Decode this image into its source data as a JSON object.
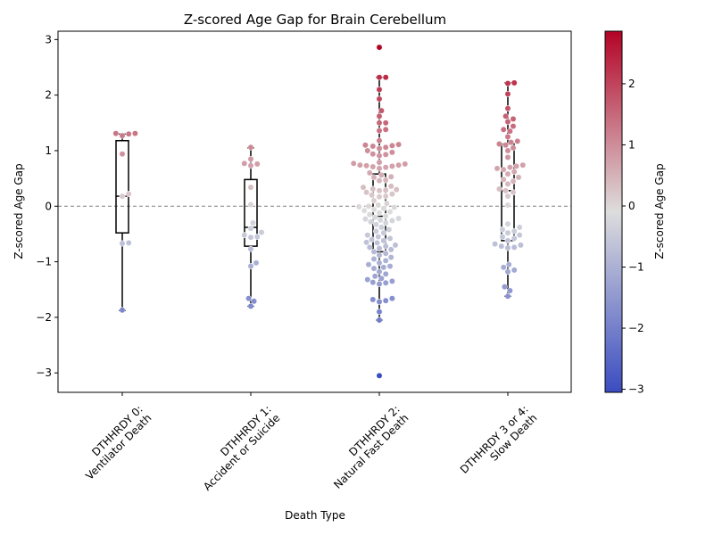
{
  "chart_data": {
    "type": "scatter",
    "subtype": "box-swarm",
    "title": "Z-scored Age Gap for Brain Cerebellum",
    "xlabel": "Death Type",
    "ylabel": "Z-scored Age Gap",
    "ylim": [
      -3.35,
      3.15
    ],
    "yticks": [
      -3,
      -2,
      -1,
      0,
      1,
      2,
      3
    ],
    "ytick_labels": [
      "−3",
      "−2",
      "−1",
      "0",
      "1",
      "2",
      "3"
    ],
    "reference_line": 0,
    "reference_line_color": "#808080",
    "grid": false,
    "categories": [
      [
        "DTHHRDY 0:",
        "Ventilator Death"
      ],
      [
        "DTHHRDY 1:",
        "Accident or Suicide"
      ],
      [
        "DTHHRDY 2:",
        "Natural Fast Death"
      ],
      [
        "DTHHRDY 3 or 4:",
        "Slow Death"
      ]
    ],
    "boxes": [
      {
        "q1": -0.48,
        "median": 0.18,
        "q3": 1.18,
        "whisker_low": -1.88,
        "whisker_high": 1.3
      },
      {
        "q1": -0.72,
        "median": -0.38,
        "q3": 0.48,
        "whisker_low": -1.8,
        "whisker_high": 1.05
      },
      {
        "q1": -0.82,
        "median": -0.18,
        "q3": 0.58,
        "whisker_low": -2.05,
        "whisker_high": 2.32
      },
      {
        "q1": -0.62,
        "median": 0.28,
        "q3": 1.12,
        "whisker_low": -1.62,
        "whisker_high": 2.22
      }
    ],
    "series": [
      {
        "values": [
          1.31,
          1.3,
          1.31,
          1.27,
          0.94,
          0.22,
          0.18,
          -0.66,
          -0.67,
          -1.87
        ]
      },
      {
        "values": [
          1.06,
          0.85,
          0.76,
          0.77,
          0.73,
          0.34,
          0.03,
          -0.3,
          -0.4,
          -0.47,
          -0.52,
          -0.55,
          -0.56,
          -0.77,
          -1.02,
          -1.08,
          -1.66,
          -1.71,
          -1.8
        ]
      },
      {
        "values": [
          2.86,
          2.32,
          2.32,
          2.1,
          1.93,
          1.72,
          1.62,
          1.5,
          1.5,
          1.38,
          1.36,
          1.18,
          1.11,
          1.1,
          1.09,
          1.08,
          1.06,
          1.04,
          1.0,
          0.97,
          0.94,
          0.93,
          0.91,
          0.79,
          0.77,
          0.76,
          0.74,
          0.74,
          0.73,
          0.72,
          0.71,
          0.7,
          0.68,
          0.6,
          0.56,
          0.53,
          0.52,
          0.47,
          0.46,
          0.36,
          0.34,
          0.31,
          0.3,
          0.29,
          0.28,
          0.25,
          0.22,
          0.2,
          0.18,
          0.17,
          0.1,
          0.05,
          0.02,
          0.0,
          -0.01,
          -0.02,
          -0.04,
          -0.06,
          -0.08,
          -0.1,
          -0.12,
          -0.15,
          -0.18,
          -0.2,
          -0.22,
          -0.23,
          -0.25,
          -0.26,
          -0.28,
          -0.3,
          -0.33,
          -0.38,
          -0.42,
          -0.45,
          -0.48,
          -0.52,
          -0.55,
          -0.58,
          -0.6,
          -0.62,
          -0.65,
          -0.66,
          -0.7,
          -0.72,
          -0.74,
          -0.76,
          -0.78,
          -0.82,
          -0.85,
          -0.88,
          -0.92,
          -0.95,
          -0.98,
          -1.02,
          -1.05,
          -1.08,
          -1.1,
          -1.12,
          -1.18,
          -1.22,
          -1.26,
          -1.3,
          -1.32,
          -1.35,
          -1.37,
          -1.38,
          -1.4,
          -1.66,
          -1.68,
          -1.7,
          -1.72,
          -1.9,
          -2.05,
          -3.05
        ]
      },
      {
        "values": [
          2.22,
          2.21,
          2.02,
          1.76,
          1.62,
          1.57,
          1.52,
          1.44,
          1.38,
          1.35,
          1.25,
          1.17,
          1.15,
          1.12,
          1.1,
          1.05,
          1.0,
          0.88,
          0.74,
          0.72,
          0.7,
          0.68,
          0.66,
          0.62,
          0.58,
          0.52,
          0.48,
          0.45,
          0.4,
          0.31,
          0.28,
          0.25,
          0.18,
          0.02,
          -0.32,
          -0.38,
          -0.42,
          -0.45,
          -0.48,
          -0.52,
          -0.55,
          -0.58,
          -0.62,
          -0.68,
          -0.7,
          -0.72,
          -0.74,
          -0.75,
          -1.05,
          -1.1,
          -1.15,
          -1.18,
          -1.45,
          -1.52,
          -1.62
        ]
      }
    ],
    "colorbar": {
      "label": "Z-scored Age Gap",
      "colormap": "coolwarm",
      "range": [
        -3.05,
        2.86
      ],
      "ticks": [
        -3,
        -2,
        -1,
        0,
        1,
        2
      ],
      "tick_labels": [
        "−3",
        "−2",
        "−1",
        "0",
        "1",
        "2"
      ]
    }
  }
}
